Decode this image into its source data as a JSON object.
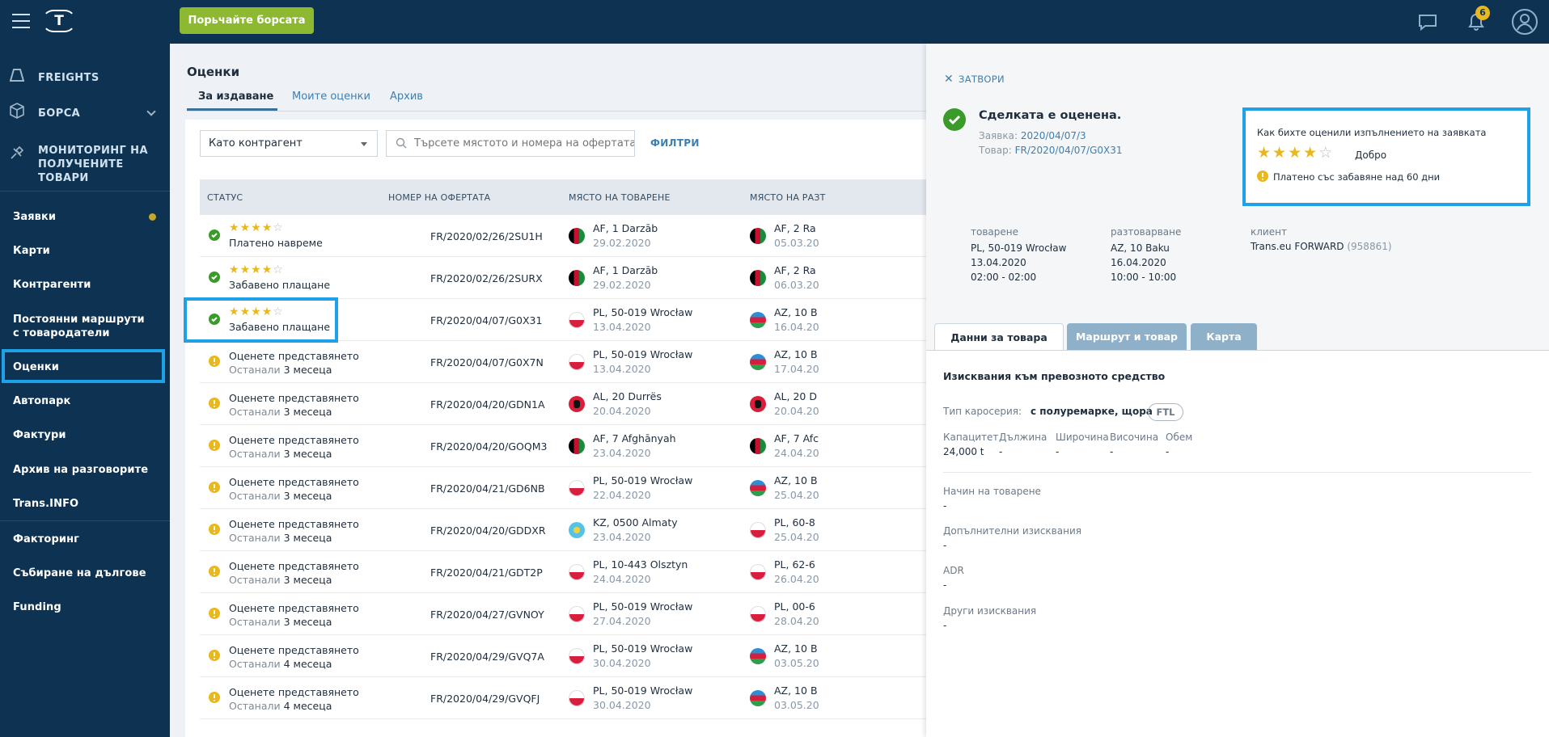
{
  "topbar": {
    "logo": "T",
    "cta_label": "Порьчайте борсата",
    "notifications_count": "6"
  },
  "sidebar": {
    "top_items": [
      {
        "label": "FREIGHTS",
        "icon": "freights-icon"
      },
      {
        "label": "БОРСА",
        "icon": "exchange-box-icon"
      },
      {
        "label": "МОНИТОРИНГ НА ПОЛУЧЕНИТЕ ТОВАРИ",
        "icon": "monitoring-satellite-icon"
      }
    ],
    "items": [
      {
        "label": "Заявки"
      },
      {
        "label": "Карти"
      },
      {
        "label": "Контрагенти"
      },
      {
        "label": "Постоянни маршрути с товародатели"
      },
      {
        "label": "Оценки"
      },
      {
        "label": "Автопарк"
      },
      {
        "label": "Фактури"
      },
      {
        "label": "Архив на разговорите"
      },
      {
        "label": "Trans.INFO"
      },
      {
        "label": "Факторинг"
      },
      {
        "label": "Събиране на дългове"
      },
      {
        "label": "Funding"
      }
    ]
  },
  "main": {
    "title": "Оценки",
    "tabs": [
      "За издаване",
      "Моите оценки",
      "Архив"
    ],
    "filter_select": "Като контрагент",
    "search_placeholder": "Търсете мястото и номера на офертата ...",
    "filters_label": "ФИЛТРИ",
    "columns": [
      "СТАТУС",
      "НОМЕР НА ОФЕРТАТА",
      "МЯСТО НА ТОВАРЕНЕ",
      "МЯСТО НА РАЗТ"
    ],
    "rows": [
      {
        "status": "ok",
        "stars": 4,
        "status_text": "Платено навреме",
        "offer": "FR/2020/02/26/2SU1H",
        "load_flag": "af",
        "load_place": "AF, 1 Darzāb",
        "load_date": "29.02.2020",
        "unload_flag": "af",
        "unload_place": "AF, 2 Ra",
        "unload_date": "05.03.20"
      },
      {
        "status": "ok",
        "stars": 4,
        "status_text": "Забавено плащане",
        "offer": "FR/2020/02/26/2SURX",
        "load_flag": "af",
        "load_place": "AF, 1 Darzāb",
        "load_date": "29.02.2020",
        "unload_flag": "af",
        "unload_place": "AF, 2 Ra",
        "unload_date": "06.03.20"
      },
      {
        "status": "ok",
        "stars": 4,
        "status_text": "Забавено плащане",
        "offer": "FR/2020/04/07/G0X31",
        "load_flag": "pl",
        "load_place": "PL, 50-019 Wrocław",
        "load_date": "13.04.2020",
        "unload_flag": "az",
        "unload_place": "AZ, 10 B",
        "unload_date": "16.04.20"
      },
      {
        "status": "warn",
        "status_text": "Оценете представянето",
        "remaining_label": "Останали",
        "remaining": "3 месеца",
        "offer": "FR/2020/04/07/G0X7N",
        "load_flag": "pl",
        "load_place": "PL, 50-019 Wrocław",
        "load_date": "13.04.2020",
        "unload_flag": "az",
        "unload_place": "AZ, 10 B",
        "unload_date": "17.04.20"
      },
      {
        "status": "warn",
        "status_text": "Оценете представянето",
        "remaining_label": "Останали",
        "remaining": "3 месеца",
        "offer": "FR/2020/04/20/GDN1A",
        "load_flag": "al",
        "load_place": "AL, 20 Durrës",
        "load_date": "20.04.2020",
        "unload_flag": "al",
        "unload_place": "AL, 20 D",
        "unload_date": "20.04.20"
      },
      {
        "status": "warn",
        "status_text": "Оценете представянето",
        "remaining_label": "Останали",
        "remaining": "3 месеца",
        "offer": "FR/2020/04/20/GOQM3",
        "load_flag": "af",
        "load_place": "AF, 7 Afghānyah",
        "load_date": "23.04.2020",
        "unload_flag": "af",
        "unload_place": "AF, 7 Afc",
        "unload_date": "24.04.20"
      },
      {
        "status": "warn",
        "status_text": "Оценете представянето",
        "remaining_label": "Останали",
        "remaining": "3 месеца",
        "offer": "FR/2020/04/21/GD6NB",
        "load_flag": "pl",
        "load_place": "PL, 50-019 Wrocław",
        "load_date": "22.04.2020",
        "unload_flag": "az",
        "unload_place": "AZ, 10 B",
        "unload_date": "25.04.20"
      },
      {
        "status": "warn",
        "status_text": "Оценете представянето",
        "remaining_label": "Останали",
        "remaining": "3 месеца",
        "offer": "FR/2020/04/20/GDDXR",
        "load_flag": "kz",
        "load_place": "KZ, 0500 Almaty",
        "load_date": "23.04.2020",
        "unload_flag": "pl",
        "unload_place": "PL, 60-8",
        "unload_date": "25.04.20"
      },
      {
        "status": "warn",
        "status_text": "Оценете представянето",
        "remaining_label": "Останали",
        "remaining": "3 месеца",
        "offer": "FR/2020/04/21/GDT2P",
        "load_flag": "pl",
        "load_place": "PL, 10-443 Olsztyn",
        "load_date": "24.04.2020",
        "unload_flag": "pl",
        "unload_place": "PL, 62-6",
        "unload_date": "26.04.20"
      },
      {
        "status": "warn",
        "status_text": "Оценете представянето",
        "remaining_label": "Останали",
        "remaining": "3 месеца",
        "offer": "FR/2020/04/27/GVNOY",
        "load_flag": "pl",
        "load_place": "PL, 50-019 Wrocław",
        "load_date": "27.04.2020",
        "unload_flag": "pl",
        "unload_place": "PL, 00-6",
        "unload_date": "28.04.20"
      },
      {
        "status": "warn",
        "status_text": "Оценете представянето",
        "remaining_label": "Останали",
        "remaining": "4 месеца",
        "offer": "FR/2020/04/29/GVQ7A",
        "load_flag": "pl",
        "load_place": "PL, 50-019 Wrocław",
        "load_date": "30.04.2020",
        "unload_flag": "az",
        "unload_place": "AZ, 10 B",
        "unload_date": "03.05.20"
      },
      {
        "status": "warn",
        "status_text": "Оценете представянето",
        "remaining_label": "Останали",
        "remaining": "4 месеца",
        "offer": "FR/2020/04/29/GVQFJ",
        "load_flag": "pl",
        "load_place": "PL, 50-019 Wrocław",
        "load_date": "30.04.2020",
        "unload_flag": "az",
        "unload_place": "AZ, 10 B",
        "unload_date": "03.05.20"
      }
    ]
  },
  "panel": {
    "close_label": "ЗАТВОРИ",
    "deal_title": "Сделката е оценена.",
    "order_label": "Заявка:",
    "order_value": "2020/04/07/3",
    "goods_label": "Товар:",
    "goods_value": "FR/2020/04/07/G0X31",
    "rating": {
      "question": "Как бихте оценили изпълнението на заявката",
      "stars": 4,
      "verdict": "Добро",
      "warning": "Платено със забавяне над 60 дни"
    },
    "loading": {
      "label": "товарене",
      "place": "PL, 50-019 Wrocław",
      "date": "13.04.2020",
      "time": "02:00 - 02:00"
    },
    "unloading": {
      "label": "разтоварване",
      "place": "AZ, 10 Baku",
      "date": "16.04.2020",
      "time": "10:00 - 10:00"
    },
    "client": {
      "label": "клиент",
      "name": "Trans.eu FORWARD",
      "id": "(958861)"
    },
    "tabs": [
      "Данни за товара",
      "Маршрут и товар",
      "Карта"
    ],
    "section_title": "Изисквания към превозното средство",
    "body_type_label": "Тип каросерия:",
    "body_type_value": "с полуремарке, щора",
    "body_badge": "FTL",
    "dims": [
      {
        "label": "Капацитет",
        "value": "24,000 t"
      },
      {
        "label": "Дължина",
        "value": "-"
      },
      {
        "label": "Широчина",
        "value": "-"
      },
      {
        "label": "Височина",
        "value": "-"
      },
      {
        "label": "Обем",
        "value": "-"
      }
    ],
    "extra": [
      {
        "label": "Начин на товарене",
        "value": "-"
      },
      {
        "label": "Допълнителни изисквания",
        "value": "-"
      },
      {
        "label": "ADR",
        "value": "-"
      },
      {
        "label": "Други изисквания",
        "value": "-"
      }
    ]
  }
}
